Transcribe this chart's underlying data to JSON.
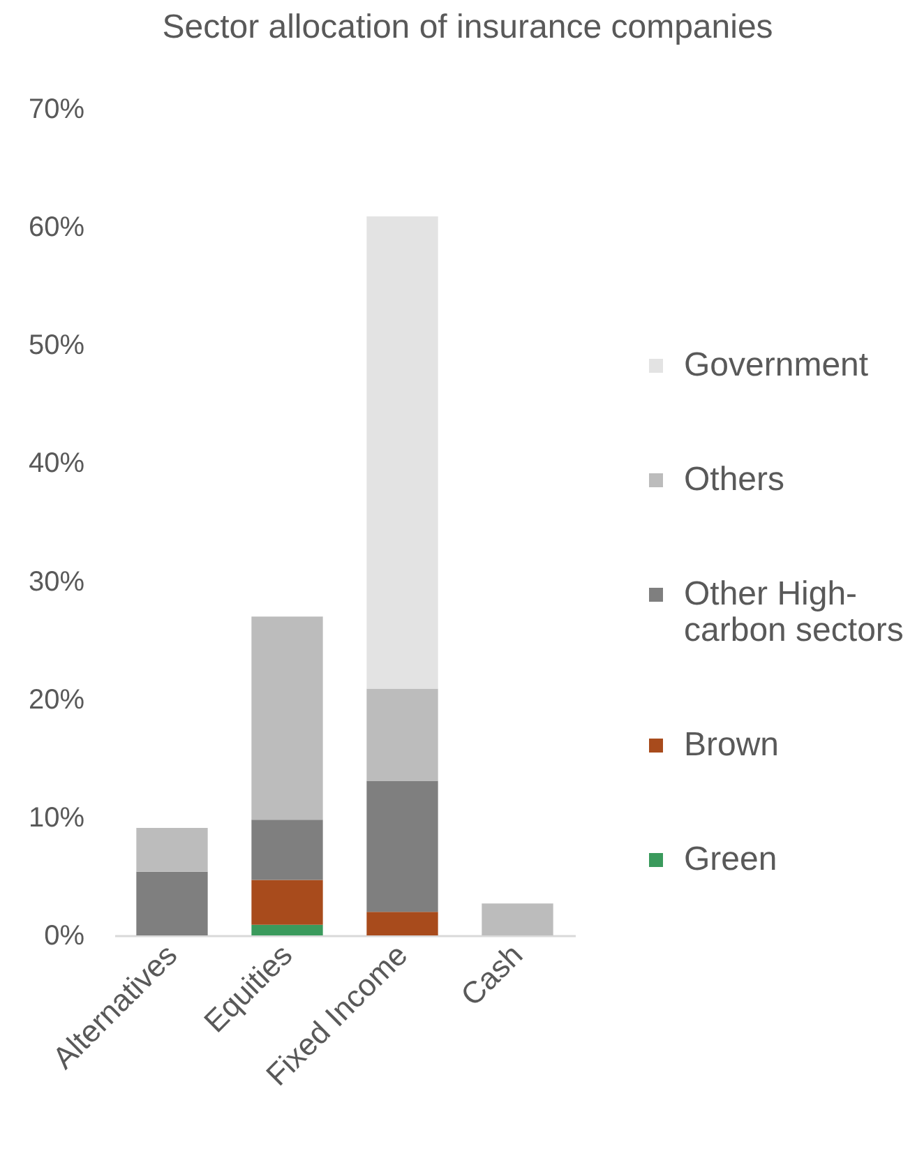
{
  "chart_data": {
    "type": "bar",
    "title": "Sector allocation of insurance companies",
    "stacked": true,
    "legend": "right",
    "categories": [
      "Alternatives",
      "Equities",
      "Fixed Income",
      "Cash"
    ],
    "series": [
      {
        "name": "Green",
        "color": "#3a9a5c",
        "values": [
          null,
          0.9,
          null,
          null
        ]
      },
      {
        "name": "Brown",
        "color": "#a84b1c",
        "values": [
          null,
          3.8,
          2.0,
          null
        ]
      },
      {
        "name": "Other High-carbon sectors",
        "color": "#7f7f7f",
        "values": [
          5.4,
          5.1,
          11.1,
          null
        ]
      },
      {
        "name": "Others",
        "color": "#bcbcbc",
        "values": [
          3.7,
          17.2,
          7.8,
          2.7
        ]
      },
      {
        "name": "Government",
        "color": "#e3e3e3",
        "values": [
          null,
          null,
          40.0,
          null
        ]
      }
    ],
    "ylim": [
      0,
      70
    ],
    "yticks": [
      {
        "value": 0,
        "label": "0%"
      },
      {
        "value": 10,
        "label": "10%"
      },
      {
        "value": 20,
        "label": "20%"
      },
      {
        "value": 30,
        "label": "30%"
      },
      {
        "value": 40,
        "label": "40%"
      },
      {
        "value": 50,
        "label": "50%"
      },
      {
        "value": 60,
        "label": "60%"
      },
      {
        "value": 70,
        "label": "70%"
      }
    ]
  }
}
